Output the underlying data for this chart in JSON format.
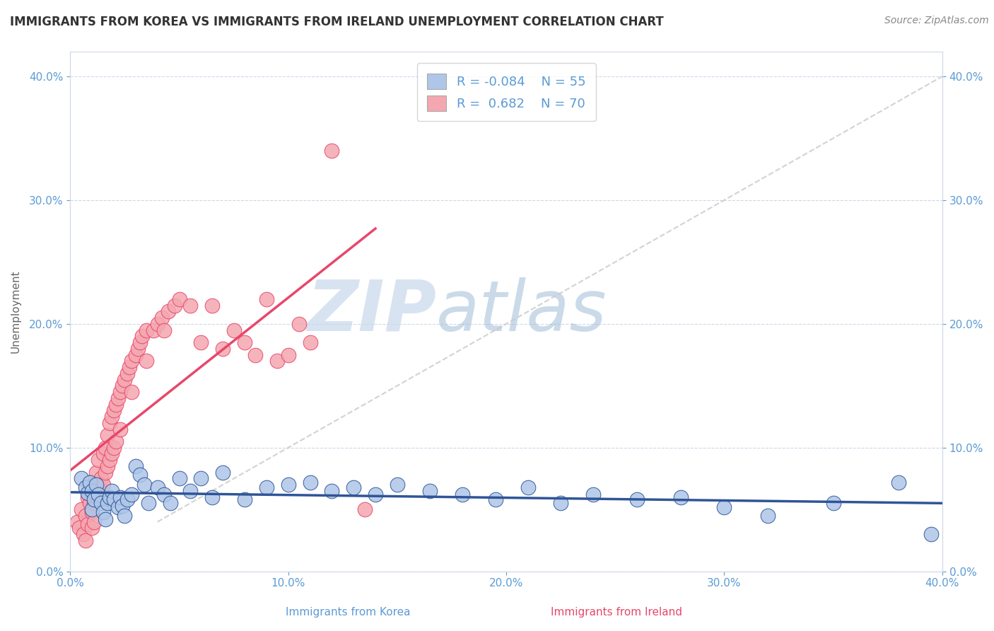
{
  "title": "IMMIGRANTS FROM KOREA VS IMMIGRANTS FROM IRELAND UNEMPLOYMENT CORRELATION CHART",
  "source": "Source: ZipAtlas.com",
  "xlabel_korea": "Immigrants from Korea",
  "xlabel_ireland": "Immigrants from Ireland",
  "ylabel": "Unemployment",
  "xlim": [
    0.0,
    0.4
  ],
  "ylim": [
    0.0,
    0.42
  ],
  "yticks": [
    0.0,
    0.1,
    0.2,
    0.3,
    0.4
  ],
  "xticks": [
    0.0,
    0.1,
    0.2,
    0.3,
    0.4
  ],
  "korea_R": -0.084,
  "korea_N": 55,
  "ireland_R": 0.682,
  "ireland_N": 70,
  "korea_color": "#aec6e8",
  "ireland_color": "#f4a7b0",
  "korea_line_color": "#2f5597",
  "ireland_line_color": "#e8476a",
  "trend_line_color": "#c8c8c8",
  "watermark_zip": "ZIP",
  "watermark_atlas": "atlas",
  "background_color": "#ffffff",
  "korea_scatter_x": [
    0.005,
    0.007,
    0.008,
    0.009,
    0.01,
    0.01,
    0.011,
    0.012,
    0.013,
    0.014,
    0.015,
    0.016,
    0.017,
    0.018,
    0.019,
    0.02,
    0.022,
    0.023,
    0.024,
    0.025,
    0.026,
    0.028,
    0.03,
    0.032,
    0.034,
    0.036,
    0.04,
    0.043,
    0.046,
    0.05,
    0.055,
    0.06,
    0.065,
    0.07,
    0.08,
    0.09,
    0.1,
    0.11,
    0.12,
    0.13,
    0.14,
    0.15,
    0.165,
    0.18,
    0.195,
    0.21,
    0.225,
    0.24,
    0.26,
    0.28,
    0.3,
    0.32,
    0.35,
    0.38,
    0.395
  ],
  "korea_scatter_y": [
    0.075,
    0.068,
    0.063,
    0.072,
    0.065,
    0.05,
    0.058,
    0.07,
    0.062,
    0.055,
    0.048,
    0.042,
    0.055,
    0.06,
    0.065,
    0.058,
    0.052,
    0.06,
    0.053,
    0.045,
    0.058,
    0.062,
    0.085,
    0.078,
    0.07,
    0.055,
    0.068,
    0.062,
    0.055,
    0.075,
    0.065,
    0.075,
    0.06,
    0.08,
    0.058,
    0.068,
    0.07,
    0.072,
    0.065,
    0.068,
    0.062,
    0.07,
    0.065,
    0.062,
    0.058,
    0.068,
    0.055,
    0.062,
    0.058,
    0.06,
    0.052,
    0.045,
    0.055,
    0.072,
    0.03
  ],
  "ireland_scatter_x": [
    0.003,
    0.004,
    0.005,
    0.006,
    0.007,
    0.007,
    0.008,
    0.008,
    0.009,
    0.01,
    0.01,
    0.01,
    0.011,
    0.011,
    0.011,
    0.012,
    0.012,
    0.013,
    0.013,
    0.014,
    0.015,
    0.015,
    0.016,
    0.016,
    0.017,
    0.017,
    0.018,
    0.018,
    0.019,
    0.019,
    0.02,
    0.02,
    0.021,
    0.021,
    0.022,
    0.023,
    0.023,
    0.024,
    0.025,
    0.026,
    0.027,
    0.028,
    0.028,
    0.03,
    0.031,
    0.032,
    0.033,
    0.035,
    0.035,
    0.038,
    0.04,
    0.042,
    0.043,
    0.045,
    0.048,
    0.05,
    0.055,
    0.06,
    0.065,
    0.07,
    0.075,
    0.08,
    0.085,
    0.09,
    0.095,
    0.1,
    0.105,
    0.11,
    0.12,
    0.135
  ],
  "ireland_scatter_y": [
    0.04,
    0.035,
    0.05,
    0.03,
    0.045,
    0.025,
    0.06,
    0.038,
    0.055,
    0.065,
    0.048,
    0.035,
    0.07,
    0.055,
    0.04,
    0.08,
    0.06,
    0.09,
    0.068,
    0.075,
    0.095,
    0.07,
    0.1,
    0.08,
    0.11,
    0.085,
    0.12,
    0.09,
    0.125,
    0.095,
    0.13,
    0.1,
    0.135,
    0.105,
    0.14,
    0.145,
    0.115,
    0.15,
    0.155,
    0.16,
    0.165,
    0.17,
    0.145,
    0.175,
    0.18,
    0.185,
    0.19,
    0.195,
    0.17,
    0.195,
    0.2,
    0.205,
    0.195,
    0.21,
    0.215,
    0.22,
    0.215,
    0.185,
    0.215,
    0.18,
    0.195,
    0.185,
    0.175,
    0.22,
    0.17,
    0.175,
    0.2,
    0.185,
    0.34,
    0.05
  ]
}
